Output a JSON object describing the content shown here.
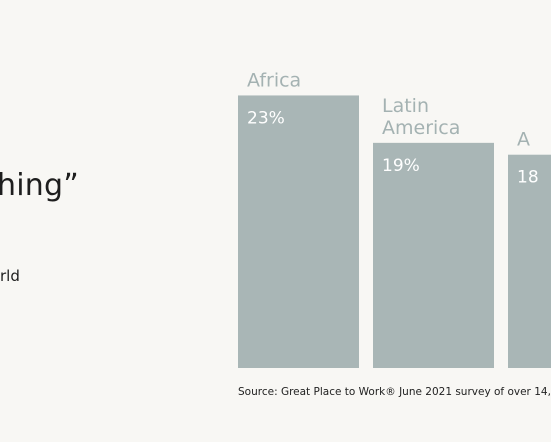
{
  "header": {
    "title_fragment": "hing”",
    "subtitle_fragment": "rld"
  },
  "chart_data": {
    "type": "bar",
    "categories": [
      "Africa",
      "Latin America",
      "A"
    ],
    "values": [
      23,
      19,
      18
    ],
    "value_labels": [
      "23%",
      "19%",
      "18"
    ],
    "ylim": [
      0,
      25
    ],
    "grid": false,
    "legend": "none",
    "bar_color": "#a9b6b6",
    "label_color": "#a4b2b2"
  },
  "footer": {
    "source": "Source: Great Place to Work® June 2021 survey of over 14,"
  }
}
